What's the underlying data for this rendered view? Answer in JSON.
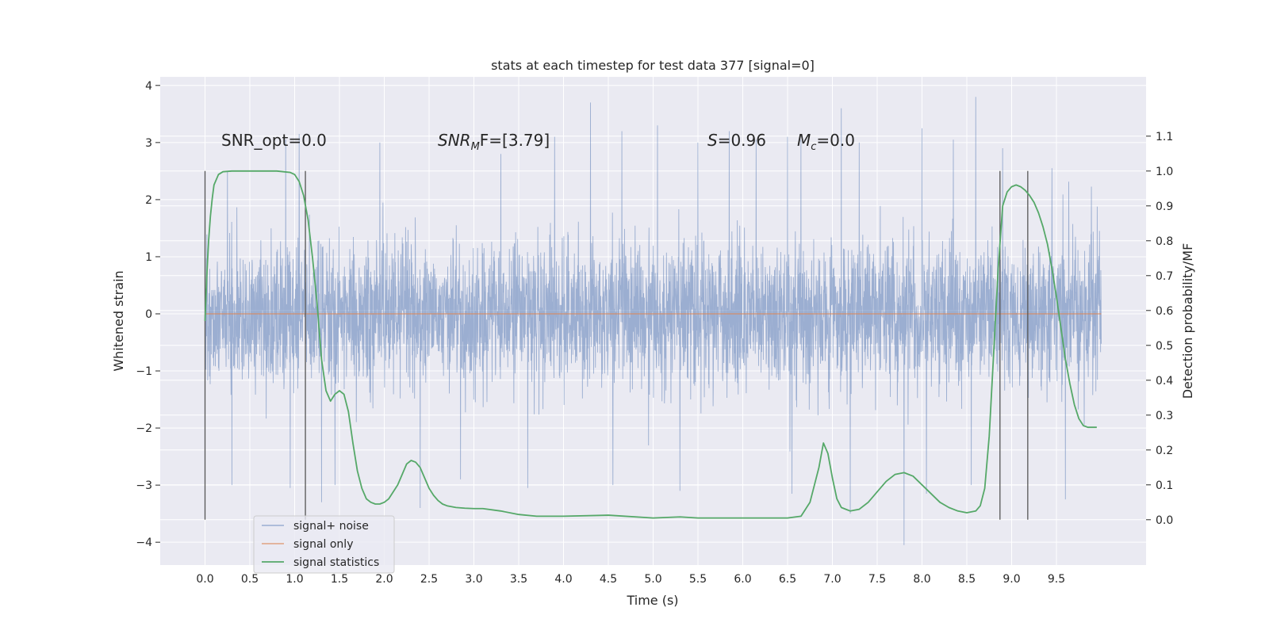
{
  "chart_data": {
    "type": "line",
    "title": "stats at each timestep for test data 377 [signal=0]",
    "xlabel": "Time (s)",
    "ylabel": "Whitened strain",
    "ylabel_right": "Detection probability/MF",
    "xlim": [
      -0.5,
      10.5
    ],
    "ylim": [
      -4.4,
      4.15
    ],
    "ylim_right": [
      -0.13,
      1.27
    ],
    "xticks": [
      0.0,
      0.5,
      1.0,
      1.5,
      2.0,
      2.5,
      3.0,
      3.5,
      4.0,
      4.5,
      5.0,
      5.5,
      6.0,
      6.5,
      7.0,
      7.5,
      8.0,
      8.5,
      9.0,
      9.5
    ],
    "xtick_labels": [
      "0.0",
      "0.5",
      "1.0",
      "1.5",
      "2.0",
      "2.5",
      "3.0",
      "3.5",
      "4.0",
      "4.5",
      "5.0",
      "5.5",
      "6.0",
      "6.5",
      "7.0",
      "7.5",
      "8.0",
      "8.5",
      "9.0",
      "9.5"
    ],
    "yticks": [
      -4,
      -3,
      -2,
      -1,
      0,
      1,
      2,
      3,
      4
    ],
    "ytick_labels": [
      "−4",
      "−3",
      "−2",
      "−1",
      "0",
      "1",
      "2",
      "3",
      "4"
    ],
    "yticks_right": [
      0.0,
      0.1,
      0.2,
      0.3,
      0.4,
      0.5,
      0.6,
      0.7,
      0.8,
      0.9,
      1.0,
      1.1
    ],
    "ytick_labels_right": [
      "0.0",
      "0.1",
      "0.2",
      "0.3",
      "0.4",
      "0.5",
      "0.6",
      "0.7",
      "0.8",
      "0.9",
      "1.0",
      "1.1"
    ],
    "grid": true,
    "legend_position": "lower-left",
    "colors": {
      "noise": "#4c72b0",
      "signal": "#dd8452",
      "stats": "#55a868",
      "vlines": "#555555",
      "axes_bg": "#eaeaf2",
      "grid": "#ffffff"
    },
    "noise_series": {
      "name": "signal+ noise",
      "x_range": [
        0.0,
        10.0
      ],
      "core_abs": 1.1,
      "peaks_up": [
        [
          0.25,
          2.5
        ],
        [
          0.9,
          3.05
        ],
        [
          1.05,
          3.15
        ],
        [
          1.3,
          2.8
        ],
        [
          1.95,
          3.0
        ],
        [
          2.4,
          2.9
        ],
        [
          2.85,
          3.2
        ],
        [
          3.3,
          2.8
        ],
        [
          3.9,
          3.1
        ],
        [
          4.3,
          3.7
        ],
        [
          4.65,
          3.2
        ],
        [
          5.05,
          3.3
        ],
        [
          5.5,
          3.0
        ],
        [
          5.85,
          3.2
        ],
        [
          6.15,
          3.05
        ],
        [
          6.5,
          3.1
        ],
        [
          6.65,
          3.05
        ],
        [
          7.1,
          3.6
        ],
        [
          7.3,
          3.0
        ],
        [
          8.0,
          3.25
        ],
        [
          8.35,
          3.05
        ],
        [
          8.6,
          3.8
        ],
        [
          8.9,
          2.9
        ],
        [
          9.45,
          2.55
        ]
      ],
      "peaks_down": [
        [
          0.3,
          -3.0
        ],
        [
          0.95,
          -3.05
        ],
        [
          1.3,
          -3.3
        ],
        [
          1.45,
          -3.0
        ],
        [
          2.4,
          -3.4
        ],
        [
          2.85,
          -2.9
        ],
        [
          3.6,
          -3.05
        ],
        [
          4.55,
          -3.0
        ],
        [
          5.3,
          -3.1
        ],
        [
          6.55,
          -3.15
        ],
        [
          7.2,
          -3.5
        ],
        [
          7.8,
          -4.05
        ],
        [
          8.05,
          -3.15
        ],
        [
          8.55,
          -3.0
        ],
        [
          9.6,
          -3.25
        ]
      ]
    },
    "signal_series": {
      "name": "signal only",
      "x": [
        0.0,
        10.0
      ],
      "y": [
        0.0,
        0.0
      ]
    },
    "stats_series": {
      "name": "signal statistics",
      "x": [
        0.0,
        0.02,
        0.04,
        0.06,
        0.08,
        0.1,
        0.15,
        0.2,
        0.3,
        0.5,
        0.8,
        0.95,
        1.0,
        1.05,
        1.1,
        1.15,
        1.2,
        1.25,
        1.3,
        1.35,
        1.4,
        1.45,
        1.5,
        1.55,
        1.6,
        1.65,
        1.7,
        1.75,
        1.8,
        1.85,
        1.9,
        1.95,
        2.0,
        2.05,
        2.1,
        2.15,
        2.2,
        2.25,
        2.3,
        2.35,
        2.4,
        2.45,
        2.5,
        2.55,
        2.6,
        2.65,
        2.7,
        2.8,
        2.9,
        3.0,
        3.1,
        3.3,
        3.5,
        3.7,
        4.0,
        4.5,
        5.0,
        5.3,
        5.5,
        6.0,
        6.5,
        6.65,
        6.75,
        6.85,
        6.9,
        6.95,
        7.0,
        7.05,
        7.1,
        7.15,
        7.2,
        7.3,
        7.4,
        7.5,
        7.6,
        7.7,
        7.8,
        7.9,
        8.0,
        8.1,
        8.2,
        8.3,
        8.4,
        8.5,
        8.6,
        8.65,
        8.7,
        8.75,
        8.8,
        8.85,
        8.9,
        8.95,
        9.0,
        9.05,
        9.1,
        9.15,
        9.2,
        9.25,
        9.3,
        9.35,
        9.4,
        9.45,
        9.5,
        9.55,
        9.6,
        9.65,
        9.7,
        9.75,
        9.8,
        9.85,
        9.9,
        9.95
      ],
      "y": [
        0.57,
        0.7,
        0.8,
        0.87,
        0.92,
        0.96,
        0.99,
        0.998,
        1.0,
        1.0,
        1.0,
        0.996,
        0.99,
        0.97,
        0.93,
        0.86,
        0.75,
        0.62,
        0.46,
        0.37,
        0.34,
        0.36,
        0.37,
        0.36,
        0.31,
        0.22,
        0.14,
        0.09,
        0.06,
        0.05,
        0.045,
        0.045,
        0.05,
        0.06,
        0.08,
        0.1,
        0.13,
        0.16,
        0.17,
        0.165,
        0.15,
        0.12,
        0.09,
        0.07,
        0.055,
        0.045,
        0.04,
        0.035,
        0.033,
        0.032,
        0.032,
        0.025,
        0.015,
        0.01,
        0.01,
        0.013,
        0.005,
        0.008,
        0.005,
        0.005,
        0.005,
        0.01,
        0.05,
        0.15,
        0.22,
        0.19,
        0.12,
        0.06,
        0.035,
        0.03,
        0.025,
        0.03,
        0.05,
        0.08,
        0.11,
        0.13,
        0.135,
        0.125,
        0.1,
        0.075,
        0.05,
        0.035,
        0.025,
        0.02,
        0.025,
        0.04,
        0.09,
        0.24,
        0.48,
        0.72,
        0.9,
        0.94,
        0.955,
        0.96,
        0.955,
        0.945,
        0.93,
        0.91,
        0.88,
        0.84,
        0.79,
        0.72,
        0.64,
        0.55,
        0.46,
        0.39,
        0.33,
        0.29,
        0.27,
        0.265,
        0.265,
        0.265
      ]
    },
    "vlines": [
      0.0,
      1.12,
      8.87,
      9.18
    ],
    "annotations": [
      "SNR_opt=0.0",
      "SNR",
      "M",
      "F=[3.79]",
      "S",
      "=0.96",
      "M",
      "c",
      "=0.0"
    ]
  }
}
